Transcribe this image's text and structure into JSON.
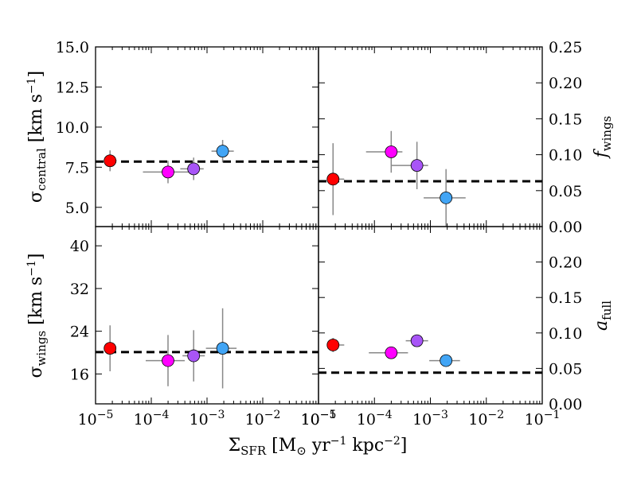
{
  "chart_data": [
    {
      "id": "top-left",
      "type": "scatter",
      "ylabel": "σ_central [km s^-1]",
      "xlim": [
        -5,
        -1
      ],
      "ylim": [
        3.8,
        15.0
      ],
      "yticks": [
        "5.0",
        "7.5",
        "10.0",
        "12.5",
        "15.0"
      ],
      "reference_line": 7.85,
      "points": [
        {
          "log_x": -4.74,
          "xerr": [
            0,
            0.12
          ],
          "y": 7.9,
          "yerr": 0.65,
          "color": "#ff0000"
        },
        {
          "log_x": -3.7,
          "xerr": [
            0.45,
            0.55
          ],
          "y": 7.2,
          "yerr": 0.7,
          "color": "#ff00ff"
        },
        {
          "log_x": -3.24,
          "xerr": [
            0.24,
            0.18
          ],
          "y": 7.4,
          "yerr": 0.7,
          "color": "#a855f7"
        },
        {
          "log_x": -2.72,
          "xerr": [
            0.2,
            0.2
          ],
          "y": 8.5,
          "yerr": 0.7,
          "color": "#42a5f5"
        }
      ]
    },
    {
      "id": "top-right",
      "type": "scatter",
      "ylabel": "f_wings",
      "xlim": [
        -5,
        -1
      ],
      "ylim": [
        0.0,
        0.25
      ],
      "yticks": [
        "0.00",
        "0.05",
        "0.10",
        "0.15",
        "0.20",
        "0.25"
      ],
      "reference_line": 0.063,
      "points": [
        {
          "log_x": -4.74,
          "xerr": [
            0,
            0.2
          ],
          "y": 0.066,
          "yerr": 0.05,
          "color": "#ff0000"
        },
        {
          "log_x": -3.7,
          "xerr": [
            0.45,
            0.2
          ],
          "y": 0.104,
          "yerr": 0.029,
          "color": "#ff00ff"
        },
        {
          "log_x": -3.24,
          "xerr": [
            0.45,
            0.2
          ],
          "y": 0.085,
          "yerr": 0.033,
          "color": "#a855f7"
        },
        {
          "log_x": -2.72,
          "xerr": [
            0.4,
            0.35
          ],
          "y": 0.04,
          "yerr": 0.04,
          "color": "#42a5f5"
        }
      ]
    },
    {
      "id": "bottom-left",
      "type": "scatter",
      "ylabel": "σ_wings [km s^-1]",
      "xlim": [
        -5,
        -1
      ],
      "ylim": [
        10.4,
        43.6
      ],
      "yticks": [
        "16",
        "24",
        "32",
        "40"
      ],
      "reference_line": 20.1,
      "points": [
        {
          "log_x": -4.74,
          "xerr": [
            0,
            0.1
          ],
          "y": 20.8,
          "yerr": 4.3,
          "color": "#ff0000"
        },
        {
          "log_x": -3.7,
          "xerr": [
            0.4,
            0.3
          ],
          "y": 18.5,
          "yerr": 4.8,
          "color": "#ff00ff"
        },
        {
          "log_x": -3.24,
          "xerr": [
            0.2,
            0.2
          ],
          "y": 19.4,
          "yerr": 4.8,
          "color": "#a855f7"
        },
        {
          "log_x": -2.72,
          "xerr": [
            0.3,
            0.25
          ],
          "y": 20.8,
          "yerr": 7.5,
          "color": "#42a5f5"
        }
      ]
    },
    {
      "id": "bottom-right",
      "type": "scatter",
      "ylabel": "a_full",
      "xlim": [
        -5,
        -1
      ],
      "ylim": [
        0.0,
        0.25
      ],
      "yticks": [
        "0.00",
        "0.05",
        "0.10",
        "0.15",
        "0.20"
      ],
      "reference_line": 0.044,
      "points": [
        {
          "log_x": -4.74,
          "xerr": [
            0,
            0.2
          ],
          "y": 0.083,
          "yerr": 0.01,
          "color": "#ff0000"
        },
        {
          "log_x": -3.7,
          "xerr": [
            0.4,
            0.3
          ],
          "y": 0.072,
          "yerr": 0.006,
          "color": "#ff00ff"
        },
        {
          "log_x": -3.24,
          "xerr": [
            0.2,
            0.2
          ],
          "y": 0.089,
          "yerr": 0.008,
          "color": "#a855f7"
        },
        {
          "log_x": -2.72,
          "xerr": [
            0.3,
            0.25
          ],
          "y": 0.061,
          "yerr": 0.003,
          "color": "#42a5f5"
        }
      ]
    }
  ],
  "x_axis": {
    "label": "Σ_SFR [M⊙ yr^-1 kpc^-2]",
    "tick_exponents_left": [
      "-5",
      "-4",
      "-3",
      "-2",
      "-1"
    ],
    "tick_exponents_right": [
      "-5",
      "-4",
      "-3",
      "-2",
      "-1"
    ]
  }
}
